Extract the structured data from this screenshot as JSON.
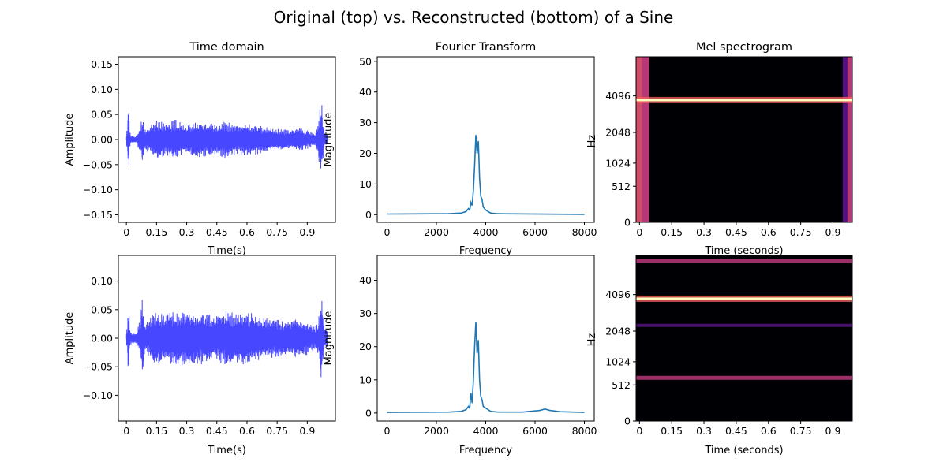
{
  "figure_title": "Original (top) vs. Reconstructed (bottom) of a Sine",
  "colors": {
    "waveform": "#0000ff",
    "fft_line": "#1f77b4",
    "spec_background": "#000004",
    "spec_peak": "#fcfdbf",
    "spec_mid": "#b73779",
    "spec_low": "#51127c"
  },
  "chart_data": [
    {
      "type": "line",
      "subplot": "Original time domain",
      "title": "Time domain",
      "xlabel": "Time(s)",
      "ylabel": "Amplitude",
      "xlim": [
        -0.04,
        1.04
      ],
      "ylim": [
        -0.165,
        0.165
      ],
      "xticks": [
        0,
        0.15,
        0.3,
        0.45,
        0.6,
        0.75,
        0.9
      ],
      "xtick_labels": [
        "0",
        "0.15",
        "0.3",
        "0.45",
        "0.6",
        "0.75",
        "0.9"
      ],
      "yticks": [
        -0.15,
        -0.1,
        -0.05,
        0.0,
        0.05,
        0.1,
        0.15
      ],
      "ytick_labels": [
        "−0.15",
        "−0.10",
        "−0.05",
        "0.00",
        "0.05",
        "0.10",
        "0.15"
      ],
      "series": [
        {
          "x": [
            0,
            0.005,
            0.01,
            0.015,
            0.02,
            0.03,
            0.05,
            0.07,
            0.08,
            0.09,
            0.12,
            0.15,
            0.2,
            0.25,
            0.3,
            0.35,
            0.4,
            0.45,
            0.5,
            0.55,
            0.6,
            0.65,
            0.7,
            0.75,
            0.8,
            0.85,
            0.9,
            0.94,
            0.955,
            0.97,
            0.985,
            1.0
          ],
          "envelope": [
            0.02,
            0.015,
            0.086,
            0.03,
            0.01,
            0.008,
            0.008,
            0.03,
            0.048,
            0.02,
            0.03,
            0.04,
            0.035,
            0.04,
            0.03,
            0.038,
            0.035,
            0.03,
            0.04,
            0.032,
            0.035,
            0.03,
            0.025,
            0.022,
            0.02,
            0.025,
            0.02,
            0.012,
            0.04,
            0.082,
            0.015,
            0.01
          ]
        }
      ]
    },
    {
      "type": "line",
      "subplot": "Original Fourier transform",
      "title": "Fourier Transform",
      "xlabel": "Frequency",
      "ylabel": "Magnitude",
      "xlim": [
        -400,
        8400
      ],
      "ylim": [
        -2.5,
        51.5
      ],
      "xticks": [
        0,
        2000,
        4000,
        6000,
        8000
      ],
      "xtick_labels": [
        "0",
        "2000",
        "4000",
        "6000",
        "8000"
      ],
      "yticks": [
        0,
        10,
        20,
        30,
        40,
        50
      ],
      "ytick_labels": [
        "0",
        "10",
        "20",
        "30",
        "40",
        "50"
      ],
      "series": [
        {
          "x": [
            0,
            2500,
            3000,
            3200,
            3300,
            3350,
            3400,
            3450,
            3500,
            3550,
            3600,
            3650,
            3700,
            3750,
            3800,
            3850,
            3900,
            4000,
            4100,
            4200,
            4500,
            8000
          ],
          "y": [
            0.2,
            0.3,
            0.5,
            1.0,
            2.0,
            1.5,
            4.0,
            3.0,
            8.0,
            16.0,
            26.0,
            20.0,
            24.0,
            12.0,
            6.0,
            5.0,
            2.5,
            1.5,
            1.0,
            0.5,
            0.3,
            0.1
          ]
        }
      ]
    },
    {
      "type": "heatmap",
      "subplot": "Original mel spectrogram",
      "title": "Mel spectrogram",
      "xlabel": "Time (seconds)",
      "ylabel": "Hz",
      "xlim": [
        -0.016,
        0.99
      ],
      "ylim": [
        0,
        8000
      ],
      "xticks": [
        0,
        0.15,
        0.3,
        0.45,
        0.6,
        0.75,
        0.9
      ],
      "xtick_labels": [
        "0",
        "0.15",
        "0.3",
        "0.45",
        "0.6",
        "0.75",
        "0.9"
      ],
      "yticks": [
        0,
        512,
        1024,
        2048,
        4096
      ],
      "ytick_labels": [
        "0",
        "512",
        "1024",
        "2048",
        "4096"
      ],
      "bands": [
        {
          "hz": 3800,
          "level": "peak"
        }
      ],
      "edge_energy": {
        "left_until": 0.045,
        "right_from": 0.945
      }
    },
    {
      "type": "line",
      "subplot": "Reconstructed time domain",
      "title": "",
      "xlabel": "Time(s)",
      "ylabel": "Amplitude",
      "xlim": [
        -0.04,
        1.04
      ],
      "ylim": [
        -0.145,
        0.145
      ],
      "xticks": [
        0,
        0.15,
        0.3,
        0.45,
        0.6,
        0.75,
        0.9
      ],
      "xtick_labels": [
        "0",
        "0.15",
        "0.3",
        "0.45",
        "0.6",
        "0.75",
        "0.9"
      ],
      "yticks": [
        -0.1,
        -0.05,
        0.0,
        0.05,
        0.1
      ],
      "ytick_labels": [
        "−0.10",
        "−0.05",
        "0.00",
        "0.05",
        "0.10"
      ],
      "series": [
        {
          "x": [
            0,
            0.005,
            0.01,
            0.015,
            0.02,
            0.03,
            0.05,
            0.07,
            0.08,
            0.09,
            0.12,
            0.15,
            0.2,
            0.25,
            0.3,
            0.35,
            0.4,
            0.45,
            0.5,
            0.55,
            0.6,
            0.65,
            0.7,
            0.75,
            0.8,
            0.85,
            0.9,
            0.94,
            0.955,
            0.97,
            0.985,
            1.0
          ],
          "envelope": [
            0.02,
            0.015,
            0.086,
            0.03,
            0.012,
            0.01,
            0.01,
            0.035,
            0.08,
            0.025,
            0.04,
            0.05,
            0.045,
            0.05,
            0.048,
            0.05,
            0.045,
            0.04,
            0.05,
            0.045,
            0.05,
            0.04,
            0.035,
            0.035,
            0.03,
            0.035,
            0.03,
            0.02,
            0.03,
            0.078,
            0.02,
            0.015
          ]
        }
      ]
    },
    {
      "type": "line",
      "subplot": "Reconstructed Fourier transform",
      "title": "",
      "xlabel": "Frequency",
      "ylabel": "Magnitude",
      "xlim": [
        -400,
        8400
      ],
      "ylim": [
        -2.4,
        47.5
      ],
      "xticks": [
        0,
        2000,
        4000,
        6000,
        8000
      ],
      "xtick_labels": [
        "0",
        "2000",
        "4000",
        "6000",
        "8000"
      ],
      "yticks": [
        0,
        10,
        20,
        30,
        40
      ],
      "ytick_labels": [
        "0",
        "10",
        "20",
        "30",
        "40"
      ],
      "series": [
        {
          "x": [
            0,
            2500,
            3000,
            3200,
            3300,
            3350,
            3400,
            3450,
            3500,
            3550,
            3600,
            3650,
            3700,
            3750,
            3800,
            3850,
            3900,
            4000,
            4100,
            4200,
            4500,
            5500,
            6200,
            6400,
            6600,
            7000,
            8000
          ],
          "y": [
            0.2,
            0.3,
            0.5,
            1.0,
            2.0,
            1.5,
            6.0,
            3.0,
            10.0,
            20.0,
            27.5,
            18.0,
            22.0,
            10.0,
            5.0,
            4.0,
            2.0,
            1.5,
            1.0,
            0.5,
            0.3,
            0.3,
            0.8,
            1.2,
            0.8,
            0.4,
            0.2
          ]
        }
      ]
    },
    {
      "type": "heatmap",
      "subplot": "Reconstructed mel spectrogram",
      "title": "",
      "xlabel": "Time (seconds)",
      "ylabel": "Hz",
      "xlim": [
        -0.016,
        0.99
      ],
      "ylim": [
        0,
        8000
      ],
      "xticks": [
        0,
        0.15,
        0.3,
        0.45,
        0.6,
        0.75,
        0.9
      ],
      "xtick_labels": [
        "0",
        "0.15",
        "0.3",
        "0.45",
        "0.6",
        "0.75",
        "0.9"
      ],
      "yticks": [
        0,
        512,
        1024,
        2048,
        4096
      ],
      "ytick_labels": [
        "0",
        "512",
        "1024",
        "2048",
        "4096"
      ],
      "bands": [
        {
          "hz": 7300,
          "level": "mid"
        },
        {
          "hz": 3800,
          "level": "peak"
        },
        {
          "hz": 2300,
          "level": "low"
        },
        {
          "hz": 650,
          "level": "mid"
        }
      ],
      "edge_energy": null
    }
  ]
}
